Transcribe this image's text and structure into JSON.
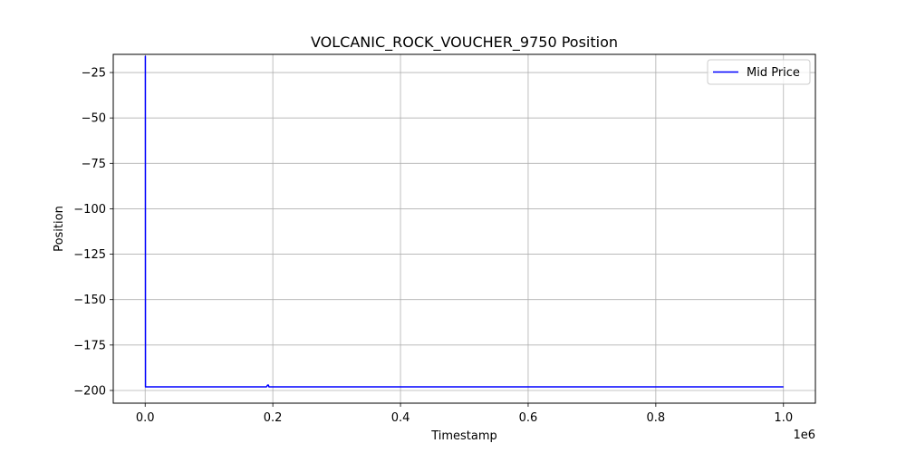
{
  "chart_data": {
    "type": "line",
    "title": "VOLCANIC_ROCK_VOUCHER_9750 Position",
    "xlabel": "Timestamp",
    "ylabel": "Position",
    "x_offset_label": "1e6",
    "xlim": [
      -0.05,
      1.05
    ],
    "ylim": [
      -207,
      -15
    ],
    "x_scale_factor": 1000000,
    "xticks": [
      0.0,
      0.2,
      0.4,
      0.6,
      0.8,
      1.0
    ],
    "xtick_labels": [
      "0.0",
      "0.2",
      "0.4",
      "0.6",
      "0.8",
      "1.0"
    ],
    "yticks": [
      -25,
      -50,
      -75,
      -100,
      -125,
      -150,
      -175,
      -200
    ],
    "ytick_labels": [
      "−25",
      "−50",
      "−75",
      "−100",
      "−125",
      "−150",
      "−175",
      "−200"
    ],
    "grid": true,
    "legend_position": "top-right",
    "series": [
      {
        "name": "Mid Price",
        "color": "#0000ff",
        "x": [
          0.0,
          0.0003,
          0.0005,
          0.001,
          0.002,
          0.005,
          0.19,
          0.192,
          0.193,
          0.194,
          0.195,
          0.2,
          0.4,
          0.6,
          0.8,
          1.0
        ],
        "y": [
          -16,
          -16,
          -198,
          -198,
          -198,
          -198,
          -198,
          -197,
          -197,
          -198,
          -198,
          -198,
          -198,
          -198,
          -198,
          -198
        ]
      }
    ]
  }
}
